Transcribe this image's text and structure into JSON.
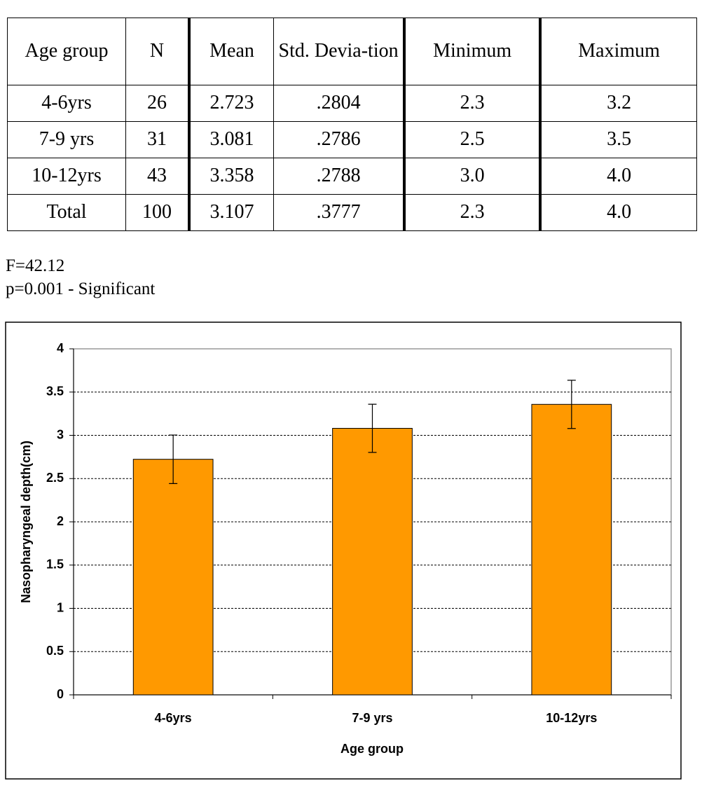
{
  "table": {
    "header": [
      "Age group",
      "N",
      "Mean",
      "Std. Devia-tion",
      "Minimum",
      "Maximum"
    ],
    "rows": [
      [
        "4-6yrs",
        "26",
        "2.723",
        ".2804",
        "2.3",
        "3.2"
      ],
      [
        "7-9 yrs",
        "31",
        "3.081",
        ".2786",
        "2.5",
        "3.5"
      ],
      [
        "10-12yrs",
        "43",
        "3.358",
        ".2788",
        "3.0",
        "4.0"
      ],
      [
        "Total",
        "100",
        "3.107",
        ".3777",
        "2.3",
        "4.0"
      ]
    ]
  },
  "notes": [
    "F=42.12",
    "p=0.001 - Significant"
  ],
  "chart_data": {
    "type": "bar",
    "categories": [
      "4-6yrs",
      "7-9 yrs",
      "10-12yrs"
    ],
    "values": [
      2.723,
      3.081,
      3.358
    ],
    "errors": [
      0.2804,
      0.2786,
      0.2788
    ],
    "color": "#ff9900",
    "ylim": [
      0,
      4
    ],
    "yticks": [
      0,
      0.5,
      1,
      1.5,
      2,
      2.5,
      3,
      3.5,
      4
    ],
    "grid": true,
    "x_label": "Age group",
    "y_label": "Nasopharyngeal depth(cm)"
  }
}
